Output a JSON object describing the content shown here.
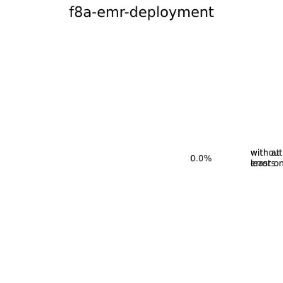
{
  "chart_data": {
    "type": "pie",
    "title": "f8a-emr-deployment",
    "slices": [
      {
        "label": "without errors",
        "value": 0.0,
        "percent_label": "0.0%"
      },
      {
        "label": "with at least one error",
        "value": 0.0,
        "percent_label": ""
      }
    ]
  }
}
